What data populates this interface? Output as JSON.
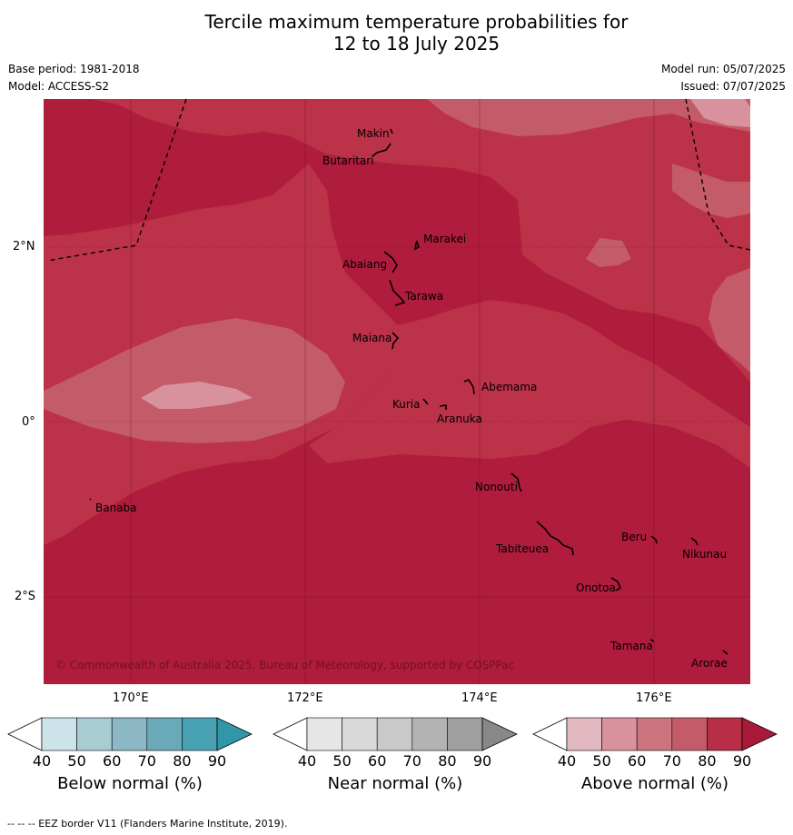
{
  "title_line1": "Tercile maximum temperature probabilities for",
  "title_line2": "12 to 18 July 2025",
  "meta": {
    "base_period": "Base period: 1981-2018",
    "model": "Model: ACCESS-S2",
    "model_run": "Model run: 05/07/2025",
    "issued": "Issued: 07/07/2025"
  },
  "axes": {
    "lat_ticks": [
      "2°N",
      "0°",
      "2°S"
    ],
    "lon_ticks": [
      "170°E",
      "172°E",
      "174°E",
      "176°E"
    ]
  },
  "places": [
    {
      "name": "Makin"
    },
    {
      "name": "Butaritari"
    },
    {
      "name": "Marakei"
    },
    {
      "name": "Abaiang"
    },
    {
      "name": "Tarawa"
    },
    {
      "name": "Maiana"
    },
    {
      "name": "Abemama"
    },
    {
      "name": "Kuria"
    },
    {
      "name": "Aranuka"
    },
    {
      "name": "Nonouti"
    },
    {
      "name": "Banaba"
    },
    {
      "name": "Beru"
    },
    {
      "name": "Nikunau"
    },
    {
      "name": "Tabiteuea"
    },
    {
      "name": "Onotoa"
    },
    {
      "name": "Tamana"
    },
    {
      "name": "Arorae"
    }
  ],
  "copyright": "© Commonwealth of Australia 2025, Bureau of Meteorology, supported by COSPPac",
  "colorbars": [
    {
      "label": "Below normal (%)",
      "ticks": [
        "40",
        "50",
        "60",
        "70",
        "80",
        "90"
      ],
      "colors": [
        "#ffffff",
        "#cce3ea",
        "#a9ccd3",
        "#8bb8c4",
        "#6aa9b8",
        "#47a1b3",
        "#3197a8"
      ]
    },
    {
      "label": "Near normal (%)",
      "ticks": [
        "40",
        "50",
        "60",
        "70",
        "80",
        "90"
      ],
      "colors": [
        "#ffffff",
        "#e6e6e6",
        "#d9d9d9",
        "#c9c9c9",
        "#b3b3b3",
        "#a0a0a0",
        "#888888"
      ]
    },
    {
      "label": "Above normal (%)",
      "ticks": [
        "40",
        "50",
        "60",
        "70",
        "80",
        "90"
      ],
      "colors": [
        "#ffffff",
        "#e3b9c1",
        "#d8929d",
        "#cd757e",
        "#c45b69",
        "#b72e46",
        "#a91a3a"
      ]
    }
  ],
  "footer": "--  --  -- EEZ border V11 (Flanders Marine Institute, 2019).",
  "fill_colors": {
    "level_90": "#b01c3b",
    "level_80": "#bb3249",
    "level_70": "#c45b69",
    "level_60": "#d8929d"
  }
}
